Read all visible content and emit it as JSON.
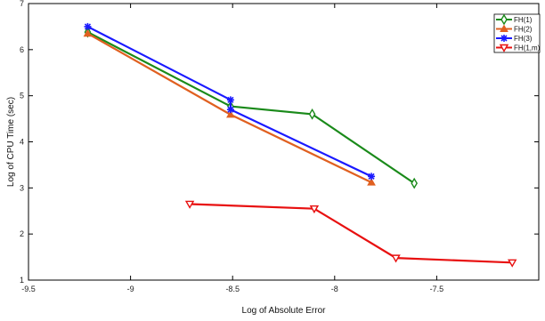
{
  "chart_data": {
    "type": "line",
    "title": "",
    "xlabel": "Log of Absolute Error",
    "ylabel": "Log of CPU Time (sec)",
    "xlim": [
      -9.5,
      -7.0
    ],
    "ylim": [
      1,
      7
    ],
    "xticks": [
      -9.5,
      -9,
      -8.5,
      -8,
      -7.5
    ],
    "xtick_labels": [
      "-9.5",
      "-9",
      "-8.5",
      "-8",
      "-7.5"
    ],
    "yticks": [
      1,
      2,
      3,
      4,
      5,
      6,
      7
    ],
    "ytick_labels": [
      "1",
      "2",
      "3",
      "4",
      "5",
      "6",
      "7"
    ],
    "grid": false,
    "legend_position": "top-right",
    "series": [
      {
        "name": "FH(1)",
        "color": "#1a8a1a",
        "marker": "diamond",
        "points": [
          [
            -9.21,
            6.38
          ],
          [
            -8.51,
            4.77
          ],
          [
            -8.11,
            4.6
          ],
          [
            -7.61,
            3.1
          ]
        ]
      },
      {
        "name": "FH(2)",
        "color": "#e06020",
        "marker": "triangle-up",
        "points": [
          [
            -9.21,
            6.35
          ],
          [
            -8.51,
            4.59
          ],
          [
            -7.82,
            3.12
          ]
        ]
      },
      {
        "name": "FH(3)",
        "color": "#1a1aff",
        "marker": "star",
        "points": [
          [
            -9.21,
            6.5
          ],
          [
            -8.51,
            4.91
          ],
          [
            -8.51,
            4.7
          ],
          [
            -7.82,
            3.25
          ]
        ]
      },
      {
        "name": "FH(1,m)",
        "color": "#e81010",
        "marker": "triangle-down",
        "points": [
          [
            -8.71,
            2.65
          ],
          [
            -8.1,
            2.55
          ],
          [
            -7.7,
            1.48
          ],
          [
            -7.13,
            1.38
          ]
        ]
      }
    ]
  }
}
